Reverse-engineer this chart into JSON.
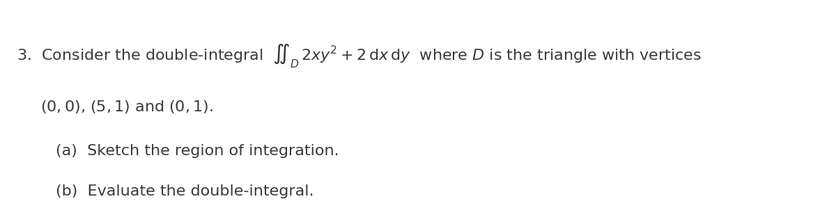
{
  "background_color": "#ffffff",
  "figsize": [
    12.0,
    2.96
  ],
  "dpi": 100,
  "text_color": "#3a3a3a",
  "line1_number": "3.",
  "line1_pre": "Consider the double-integral",
  "line1_integral": "$\\iint_D$",
  "line1_integrand": "$2xy^2 + 2\\,\\mathrm{d}x\\,\\mathrm{d}y$",
  "line1_post": "where $D$ is the triangle with vertices",
  "line2": "$(0, 0)$, $(5, 1)$ and $(0, 1)$.",
  "line3": "(a)  Sketch the region of integration.",
  "line4": "(b)  Evaluate the double-integral.",
  "fontsize_main": 16,
  "fontsize_parts": 16,
  "font_family": "DejaVu Sans"
}
